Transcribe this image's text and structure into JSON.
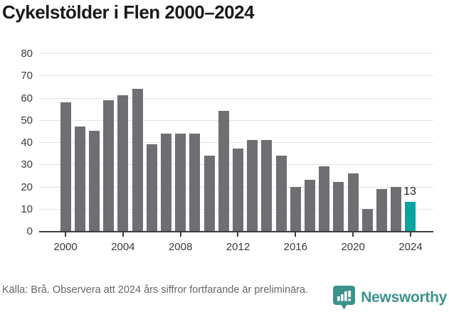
{
  "title": "Cykelstölder i Flen 2000–2024",
  "footer": {
    "source": "Källa: Brå. Observera att 2024 års siffror fortfarande är preliminära.",
    "brand": "Newsworthy"
  },
  "colors": {
    "bar": "#6e6e73",
    "bar_highlight": "#0ba3a0",
    "grid": "#e3e3e3",
    "axis": "#3d3d3d",
    "tick_label": "#3a3a3a",
    "title": "#1a1a1a",
    "source_text": "#666666",
    "brand_teal": "#3c938c"
  },
  "chart_data": {
    "type": "bar",
    "title": "Cykelstölder i Flen 2000–2024",
    "xlabel": "",
    "ylabel": "",
    "categories": [
      2000,
      2001,
      2002,
      2003,
      2004,
      2005,
      2006,
      2007,
      2008,
      2009,
      2010,
      2011,
      2012,
      2013,
      2014,
      2015,
      2016,
      2017,
      2018,
      2019,
      2020,
      2021,
      2022,
      2023,
      2024
    ],
    "values": [
      58,
      47,
      45,
      59,
      61,
      64,
      39,
      44,
      44,
      44,
      34,
      54,
      37,
      41,
      41,
      34,
      20,
      23,
      29,
      22,
      26,
      10,
      19,
      20,
      13
    ],
    "highlight_category": 2024,
    "annotation": {
      "category": 2024,
      "text": "13"
    },
    "ylim": [
      0,
      80
    ],
    "yticks": [
      0,
      10,
      20,
      30,
      40,
      50,
      60,
      70,
      80
    ],
    "xticks": [
      2000,
      2004,
      2008,
      2012,
      2016,
      2020,
      2024
    ],
    "grid": "horizontal",
    "legend": "none"
  }
}
